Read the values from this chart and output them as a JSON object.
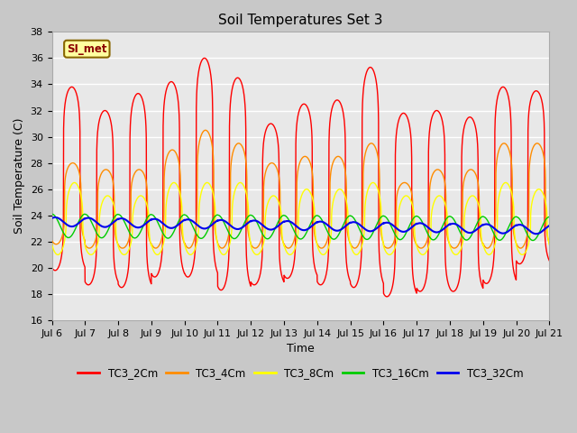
{
  "title": "Soil Temperatures Set 3",
  "xlabel": "Time",
  "ylabel": "Soil Temperature (C)",
  "ylim": [
    16,
    38
  ],
  "xtick_labels": [
    "Jul 6",
    "Jul 7",
    "Jul 8",
    "Jul 9",
    "Jul 10",
    "Jul 11",
    "Jul 12",
    "Jul 13",
    "Jul 14",
    "Jul 15",
    "Jul 16",
    "Jul 17",
    "Jul 18",
    "Jul 19",
    "Jul 20",
    "Jul 21"
  ],
  "series": {
    "TC3_2Cm": {
      "color": "#FF0000",
      "linewidth": 1.0
    },
    "TC3_4Cm": {
      "color": "#FF8C00",
      "linewidth": 1.0
    },
    "TC3_8Cm": {
      "color": "#FFFF00",
      "linewidth": 1.0
    },
    "TC3_16Cm": {
      "color": "#00CC00",
      "linewidth": 1.0
    },
    "TC3_32Cm": {
      "color": "#0000EE",
      "linewidth": 1.5
    }
  },
  "annotation_text": "SI_met",
  "bg_color": "#E8E8E8",
  "grid_color": "#FFFFFF",
  "title_fontsize": 11,
  "tick_fontsize": 8,
  "label_fontsize": 9,
  "days": 15,
  "pts_per_day": 288,
  "mean_2cm": 23.0,
  "mean_4cm": 23.0,
  "mean_8cm": 23.0,
  "mean_16cm": 23.2,
  "mean_32cm": 23.5,
  "day_peaks_2": [
    33.8,
    32.0,
    33.3,
    34.2,
    36.0,
    34.5,
    31.0,
    32.5,
    32.8,
    35.3,
    31.8,
    32.0,
    31.5,
    33.8,
    33.5
  ],
  "day_mins_2": [
    19.8,
    18.7,
    18.5,
    19.3,
    19.3,
    18.3,
    18.7,
    19.2,
    18.7,
    18.5,
    17.8,
    18.2,
    18.2,
    18.8,
    20.3
  ],
  "day_peaks_4": [
    28.0,
    27.5,
    27.5,
    29.0,
    30.5,
    29.5,
    28.0,
    28.5,
    28.5,
    29.5,
    26.5,
    27.5,
    27.5,
    29.5,
    29.5
  ],
  "day_mins_4": [
    21.8,
    21.5,
    21.5,
    21.5,
    21.5,
    21.5,
    21.5,
    21.5,
    21.5,
    21.5,
    21.5,
    21.5,
    21.5,
    21.5,
    21.5
  ],
  "day_peaks_8": [
    26.5,
    25.5,
    25.5,
    26.5,
    26.5,
    26.5,
    25.5,
    26.0,
    26.0,
    26.5,
    25.5,
    25.5,
    25.5,
    26.5,
    26.0
  ],
  "day_mins_8": [
    21.0,
    21.0,
    21.0,
    21.0,
    21.0,
    21.0,
    21.0,
    21.0,
    21.0,
    21.0,
    21.0,
    21.0,
    21.0,
    21.0,
    21.0
  ],
  "peak_phase_2": 0.6,
  "peak_phase_4": 0.63,
  "peak_phase_8": 0.68,
  "peak_phase_16": 0.75,
  "peak_phase_32": 0.85,
  "amp_16": 0.9,
  "amp_32": 0.35,
  "sharpness": 6
}
